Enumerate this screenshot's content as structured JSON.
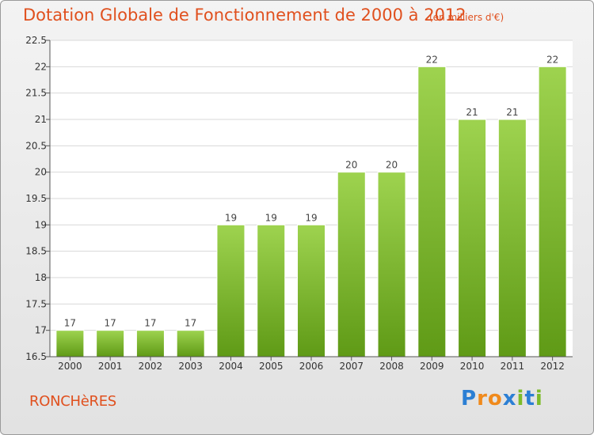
{
  "title": "Dotation Globale de Fonctionnement de 2000 à 2012",
  "subtitle": "(en milliers d'€)",
  "commune": "RONCHèRES",
  "brand": {
    "letters": [
      "P",
      "r",
      "o",
      "x",
      "i",
      "t",
      "i"
    ],
    "colors": [
      "#2b7fd4",
      "#f08a1c",
      "#f08a1c",
      "#2b7fd4",
      "#7dbb2a",
      "#2b7fd4",
      "#7dbb2a"
    ]
  },
  "colors": {
    "bar_top": "#9ed34f",
    "bar_bottom": "#5f9a16",
    "accent": "#e0501e"
  },
  "chart_data": {
    "type": "bar",
    "categories": [
      "2000",
      "2001",
      "2002",
      "2003",
      "2004",
      "2005",
      "2006",
      "2007",
      "2008",
      "2009",
      "2010",
      "2011",
      "2012"
    ],
    "values": [
      17,
      17,
      17,
      17,
      19,
      19,
      19,
      20,
      20,
      22,
      21,
      21,
      22
    ],
    "data_labels": [
      "17",
      "17",
      "17",
      "17",
      "19",
      "19",
      "19",
      "20",
      "20",
      "22",
      "21",
      "21",
      "22"
    ],
    "ylim": [
      16.5,
      22.5
    ],
    "yticks": [
      "16.5",
      "17",
      "17.5",
      "18",
      "18.5",
      "19",
      "19.5",
      "20",
      "20.5",
      "21",
      "21.5",
      "22",
      "22.5"
    ],
    "grid": true,
    "title": "Dotation Globale de Fonctionnement de 2000 à 2012",
    "xlabel": "",
    "ylabel": ""
  }
}
